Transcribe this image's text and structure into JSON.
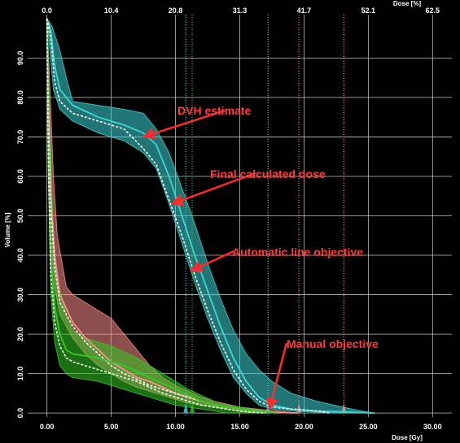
{
  "chart_data": {
    "type": "line",
    "x_primary": {
      "label": "Dose [Gy]",
      "ticks": [
        "0.00",
        "5.00",
        "10.00",
        "15.00",
        "20.00",
        "25.00",
        "30.00"
      ],
      "range": [
        -1.5,
        31.5
      ]
    },
    "x_secondary": {
      "label": "Dose [%]",
      "ticks": [
        "0.0",
        "10.4",
        "20.8",
        "31.3",
        "41.7",
        "52.1",
        "62.5"
      ]
    },
    "y": {
      "label": "Volume [%]",
      "ticks": [
        "0.0",
        "10.0",
        "20.0",
        "30.0",
        "40.0",
        "50.0",
        "60.0",
        "70.0",
        "80.0",
        "90.0"
      ],
      "range": [
        -1,
        101
      ]
    },
    "grid": true,
    "background": "#000000",
    "series": [
      {
        "name": "",
        "color": "#3ed6d6",
        "estimate": [
          [
            0,
            100
          ],
          [
            0.3,
            97
          ],
          [
            0.6,
            88
          ],
          [
            1,
            82
          ],
          [
            2,
            78
          ],
          [
            4,
            75
          ],
          [
            6,
            73
          ],
          [
            7.5,
            71
          ],
          [
            8.5,
            68
          ],
          [
            9.5,
            60
          ],
          [
            10.5,
            50
          ],
          [
            11.5,
            40
          ],
          [
            12.5,
            31
          ],
          [
            13.5,
            22
          ],
          [
            14.5,
            14
          ],
          [
            15.5,
            8
          ],
          [
            16.5,
            4
          ],
          [
            17.5,
            2
          ],
          [
            19,
            1
          ],
          [
            21,
            0.5
          ],
          [
            24,
            0.2
          ],
          [
            25.5,
            0
          ]
        ],
        "band_upper": [
          [
            0,
            100
          ],
          [
            0.4,
            98
          ],
          [
            1,
            92
          ],
          [
            1.5,
            85
          ],
          [
            2,
            79
          ],
          [
            4,
            78
          ],
          [
            6,
            77
          ],
          [
            7.5,
            76
          ],
          [
            8.5,
            72
          ],
          [
            9.5,
            66
          ],
          [
            10.5,
            57
          ],
          [
            11.5,
            48
          ],
          [
            12.5,
            38
          ],
          [
            13.5,
            29
          ],
          [
            14.5,
            21
          ],
          [
            15.5,
            15
          ],
          [
            16.5,
            11
          ],
          [
            17.5,
            8
          ],
          [
            19,
            5
          ],
          [
            21,
            3
          ],
          [
            23,
            1.5
          ],
          [
            24.5,
            0.5
          ],
          [
            25.5,
            0
          ]
        ],
        "band_lower": [
          [
            0,
            100
          ],
          [
            0.2,
            93
          ],
          [
            0.5,
            82
          ],
          [
            1,
            77
          ],
          [
            2,
            74
          ],
          [
            4,
            71
          ],
          [
            6,
            69
          ],
          [
            7.5,
            66
          ],
          [
            8.5,
            62
          ],
          [
            9.5,
            53
          ],
          [
            10.5,
            43
          ],
          [
            11.5,
            33
          ],
          [
            12.5,
            24
          ],
          [
            13.5,
            16
          ],
          [
            14.5,
            9
          ],
          [
            15.5,
            5
          ],
          [
            16.5,
            2
          ],
          [
            17.5,
            1
          ],
          [
            19,
            0.5
          ],
          [
            21,
            0.2
          ],
          [
            22,
            0
          ]
        ],
        "final": [
          [
            0,
            100
          ],
          [
            0.3,
            95
          ],
          [
            0.6,
            84
          ],
          [
            1,
            79
          ],
          [
            2,
            76
          ],
          [
            4,
            74
          ],
          [
            6,
            72
          ],
          [
            7.5,
            67
          ],
          [
            8.5,
            63
          ],
          [
            9.5,
            54
          ],
          [
            10.5,
            45
          ],
          [
            11.5,
            35
          ],
          [
            12.5,
            26
          ],
          [
            13.5,
            18
          ],
          [
            14.5,
            11
          ],
          [
            15.5,
            6
          ],
          [
            16.5,
            3
          ],
          [
            17.5,
            1.5
          ],
          [
            19,
            1
          ],
          [
            21,
            0.5
          ],
          [
            22,
            0
          ]
        ],
        "objective_lines": [
          10.8,
          17.2
        ]
      },
      {
        "name": "",
        "color": "#ff8d8d",
        "estimate": [
          [
            0,
            100
          ],
          [
            0.1,
            80
          ],
          [
            0.3,
            55
          ],
          [
            0.6,
            40
          ],
          [
            1,
            30
          ],
          [
            2,
            23
          ],
          [
            3,
            19
          ],
          [
            4,
            16
          ],
          [
            5,
            13
          ],
          [
            6,
            11
          ],
          [
            7,
            9
          ],
          [
            8,
            8
          ],
          [
            9,
            6.5
          ],
          [
            10,
            5
          ],
          [
            11,
            4
          ],
          [
            12,
            3
          ],
          [
            13,
            2
          ],
          [
            15,
            1
          ],
          [
            17,
            0.3
          ],
          [
            19.5,
            0
          ]
        ],
        "band_upper": [
          [
            0,
            100
          ],
          [
            0.2,
            85
          ],
          [
            0.5,
            60
          ],
          [
            0.8,
            45
          ],
          [
            1.5,
            32
          ],
          [
            2,
            30
          ],
          [
            3,
            28
          ],
          [
            4,
            26
          ],
          [
            5,
            24
          ],
          [
            6,
            20
          ],
          [
            7,
            16
          ],
          [
            8,
            12
          ],
          [
            9,
            9
          ],
          [
            10,
            7
          ],
          [
            11,
            5.5
          ],
          [
            12,
            4
          ],
          [
            13,
            3
          ],
          [
            15,
            1.5
          ],
          [
            17,
            0.8
          ],
          [
            19.5,
            0
          ]
        ],
        "band_lower": [
          [
            0,
            100
          ],
          [
            0.1,
            70
          ],
          [
            0.3,
            45
          ],
          [
            0.6,
            32
          ],
          [
            1,
            25
          ],
          [
            2,
            19
          ],
          [
            3,
            15
          ],
          [
            4,
            12
          ],
          [
            5,
            10
          ],
          [
            6,
            8
          ],
          [
            7,
            6.5
          ],
          [
            8,
            5.5
          ],
          [
            9,
            4.5
          ],
          [
            10,
            3.5
          ],
          [
            11,
            2.5
          ],
          [
            12,
            2
          ],
          [
            13,
            1.5
          ],
          [
            15,
            0.5
          ],
          [
            16,
            0
          ]
        ],
        "final": [
          [
            0,
            100
          ],
          [
            0.1,
            78
          ],
          [
            0.3,
            52
          ],
          [
            0.6,
            37
          ],
          [
            1,
            28
          ],
          [
            2,
            22
          ],
          [
            3,
            18
          ],
          [
            4,
            15
          ],
          [
            5,
            12
          ],
          [
            6,
            10
          ],
          [
            7,
            8.5
          ],
          [
            8,
            7
          ],
          [
            9,
            6
          ],
          [
            10,
            5
          ],
          [
            11,
            4
          ],
          [
            12,
            3
          ],
          [
            13,
            2
          ],
          [
            15,
            1
          ],
          [
            17,
            0.3
          ],
          [
            18,
            0
          ]
        ],
        "objective_lines": [
          19.6,
          23.1
        ]
      },
      {
        "name": "",
        "color": "#33cc22",
        "estimate": [
          [
            0,
            100
          ],
          [
            0.1,
            70
          ],
          [
            0.3,
            40
          ],
          [
            0.6,
            27
          ],
          [
            1,
            20
          ],
          [
            1.5,
            16
          ],
          [
            2,
            15
          ],
          [
            3,
            14.5
          ],
          [
            4,
            14
          ],
          [
            5,
            13
          ],
          [
            6,
            12
          ],
          [
            7,
            10.5
          ],
          [
            8,
            9
          ],
          [
            9,
            7.5
          ],
          [
            10,
            6
          ],
          [
            11,
            4.5
          ],
          [
            12,
            3
          ],
          [
            13,
            2
          ],
          [
            14,
            1.5
          ],
          [
            15,
            1
          ],
          [
            16,
            0.6
          ],
          [
            17,
            0.3
          ],
          [
            18,
            0
          ]
        ],
        "band_upper": [
          [
            0,
            100
          ],
          [
            0.2,
            75
          ],
          [
            0.5,
            45
          ],
          [
            0.8,
            34
          ],
          [
            1.5,
            25
          ],
          [
            2,
            21
          ],
          [
            3,
            19
          ],
          [
            4,
            18
          ],
          [
            5,
            17
          ],
          [
            6,
            15.5
          ],
          [
            7,
            14
          ],
          [
            8,
            12
          ],
          [
            9,
            10
          ],
          [
            10,
            8
          ],
          [
            11,
            6
          ],
          [
            12,
            4.5
          ],
          [
            13,
            3
          ],
          [
            14,
            2
          ],
          [
            15,
            1.5
          ],
          [
            16,
            1
          ],
          [
            17,
            0.5
          ],
          [
            18,
            0
          ]
        ],
        "band_lower": [
          [
            0,
            100
          ],
          [
            0.1,
            60
          ],
          [
            0.3,
            30
          ],
          [
            0.6,
            18
          ],
          [
            1,
            12
          ],
          [
            1.5,
            10
          ],
          [
            2,
            9
          ],
          [
            3,
            8.5
          ],
          [
            4,
            8
          ],
          [
            5,
            7
          ],
          [
            6,
            6
          ],
          [
            7,
            5
          ],
          [
            8,
            4
          ],
          [
            9,
            3
          ],
          [
            10,
            2
          ],
          [
            11,
            1.5
          ],
          [
            12,
            1
          ],
          [
            13,
            0.5
          ],
          [
            14,
            0
          ]
        ],
        "final": [
          [
            0,
            100
          ],
          [
            0.1,
            65
          ],
          [
            0.3,
            35
          ],
          [
            0.6,
            23
          ],
          [
            1,
            17
          ],
          [
            1.5,
            14
          ],
          [
            2,
            13
          ],
          [
            3,
            12
          ],
          [
            4,
            11
          ],
          [
            5,
            10
          ],
          [
            6,
            9
          ],
          [
            7,
            8
          ],
          [
            8,
            6.5
          ],
          [
            9,
            5
          ],
          [
            10,
            4
          ],
          [
            11,
            3
          ],
          [
            12,
            2
          ],
          [
            13,
            1.5
          ],
          [
            14,
            1
          ],
          [
            15,
            0.5
          ],
          [
            16,
            0.2
          ],
          [
            17,
            0
          ]
        ],
        "objective_lines": [
          11.3
        ]
      }
    ],
    "annotations": [
      {
        "text": "DVH estimate",
        "arrow_to": [
          7.5,
          70
        ]
      },
      {
        "text": "Final calculated dose",
        "arrow_to": [
          9.7,
          53
        ]
      },
      {
        "text": "Automatic line objective",
        "arrow_to": [
          11.2,
          36
        ]
      },
      {
        "text": "Manual objective",
        "arrow_to": [
          17.3,
          1
        ]
      }
    ]
  }
}
